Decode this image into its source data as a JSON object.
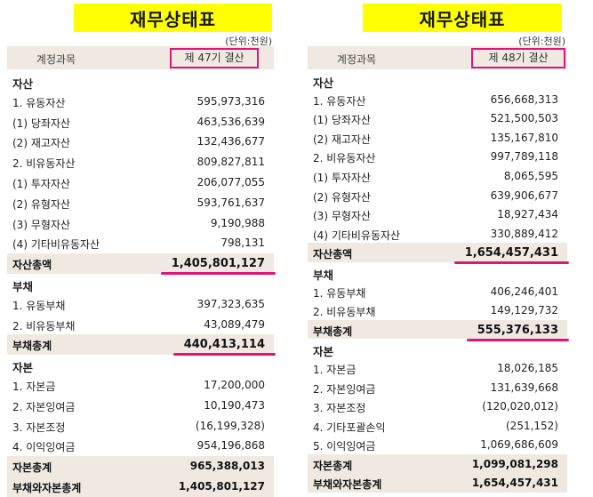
{
  "left": {
    "title": "재무상태표",
    "unit": "(단위:천원)",
    "header_account": "계정과목",
    "header_period": "제 47기 결산",
    "rows": [
      {
        "label": "자산",
        "value": "",
        "type": "section"
      },
      {
        "label": "1. 유동자산",
        "value": "595,973,316",
        "type": "item"
      },
      {
        "label": "(1) 당좌자산",
        "value": "463,536,639",
        "type": "item"
      },
      {
        "label": "(2) 재고자산",
        "value": "132,436,677",
        "type": "item"
      },
      {
        "label": "2. 비유동자산",
        "value": "809,827,811",
        "type": "item"
      },
      {
        "label": "(1) 투자자산",
        "value": "206,077,055",
        "type": "item"
      },
      {
        "label": "(2) 유형자산",
        "value": "593,761,637",
        "type": "item"
      },
      {
        "label": "(3) 무형자산",
        "value": "9,190,988",
        "type": "item"
      },
      {
        "label": "(4) 기타비유동자산",
        "value": "798,131",
        "type": "item"
      },
      {
        "label": "자산총액",
        "value": "1,405,801,127",
        "type": "total",
        "highlight": true
      },
      {
        "label": "부채",
        "value": "",
        "type": "section"
      },
      {
        "label": "1. 유동부채",
        "value": "397,323,635",
        "type": "item"
      },
      {
        "label": "2. 비유동부채",
        "value": "43,089,479",
        "type": "item"
      },
      {
        "label": "부채총계",
        "value": "440,413,114",
        "type": "total",
        "highlight": true
      },
      {
        "label": "자본",
        "value": "",
        "type": "section"
      },
      {
        "label": "1. 자본금",
        "value": "17,200,000",
        "type": "item"
      },
      {
        "label": "2. 자본잉여금",
        "value": "10,190,473",
        "type": "item"
      },
      {
        "label": "3. 자본조정",
        "value": "(16,199,328)",
        "type": "item"
      },
      {
        "label": "4. 이익잉여금",
        "value": "954,196,868",
        "type": "item"
      },
      {
        "label": "자본총계",
        "value": "965,388,013",
        "type": "total"
      },
      {
        "label": "부채와자본총계",
        "value": "1,405,801,127",
        "type": "total"
      }
    ]
  },
  "right": {
    "title": "재무상태표",
    "unit": "(단위:천원)",
    "header_account": "계정과목",
    "header_period": "제 48기 결산",
    "rows": [
      {
        "label": "자산",
        "value": "",
        "type": "section"
      },
      {
        "label": "1. 유동자산",
        "value": "656,668,313",
        "type": "item"
      },
      {
        "label": "(1) 당좌자산",
        "value": "521,500,503",
        "type": "item"
      },
      {
        "label": "(2) 재고자산",
        "value": "135,167,810",
        "type": "item"
      },
      {
        "label": "2. 비유동자산",
        "value": "997,789,118",
        "type": "item"
      },
      {
        "label": "(1) 투자자산",
        "value": "8,065,595",
        "type": "item"
      },
      {
        "label": "(2) 유형자산",
        "value": "639,906,677",
        "type": "item"
      },
      {
        "label": "(3) 무형자산",
        "value": "18,927,434",
        "type": "item"
      },
      {
        "label": "(4) 기타비유동자산",
        "value": "330,889,412",
        "type": "item"
      },
      {
        "label": "자산총액",
        "value": "1,654,457,431",
        "type": "total",
        "highlight": true
      },
      {
        "label": "부채",
        "value": "",
        "type": "section"
      },
      {
        "label": "1. 유동부채",
        "value": "406,246,401",
        "type": "item"
      },
      {
        "label": "2. 비유동부채",
        "value": "149,129,732",
        "type": "item"
      },
      {
        "label": "부채총계",
        "value": "555,376,133",
        "type": "total",
        "highlight": true
      },
      {
        "label": "자본",
        "value": "",
        "type": "section"
      },
      {
        "label": "1. 자본금",
        "value": "18,026,185",
        "type": "item"
      },
      {
        "label": "2. 자본잉여금",
        "value": "131,639,668",
        "type": "item"
      },
      {
        "label": "3. 자본조정",
        "value": "(120,020,012)",
        "type": "item"
      },
      {
        "label": "4. 기타포괄손익",
        "value": "(251,152)",
        "type": "item"
      },
      {
        "label": "5. 이익잉여금",
        "value": "1,069,686,609",
        "type": "item"
      },
      {
        "label": "자본총계",
        "value": "1,099,081,298",
        "type": "total"
      },
      {
        "label": "부채와자본총계",
        "value": "1,654,457,431",
        "type": "total"
      }
    ]
  },
  "colors": {
    "title_bg": "#ffff00",
    "header_bg": "#efe9e1",
    "highlight": "#e0157b"
  }
}
